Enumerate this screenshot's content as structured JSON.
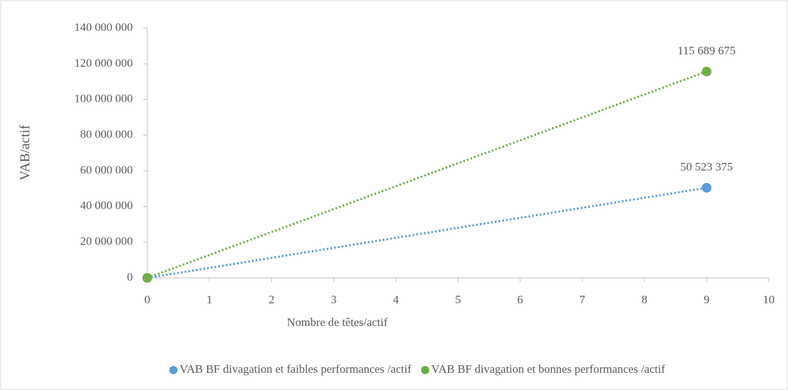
{
  "chart_data": {
    "type": "scatter",
    "xlabel": "Nombre de têtes/actif",
    "ylabel": "VAB/actif",
    "xlim": [
      0,
      10
    ],
    "xticks": [
      0,
      1,
      2,
      3,
      4,
      5,
      6,
      7,
      8,
      9,
      10
    ],
    "ylim": [
      0,
      140000000
    ],
    "yticks": [
      0,
      {
        "value": 20000000,
        "label": "20 000 000"
      },
      {
        "value": 40000000,
        "label": "40 000 000"
      },
      {
        "value": 60000000,
        "label": "60 000 000"
      },
      {
        "value": 80000000,
        "label": "80 000 000"
      },
      {
        "value": 100000000,
        "label": "100 000 000"
      },
      {
        "value": 120000000,
        "label": "120 000 000"
      },
      {
        "value": 140000000,
        "label": "140 000 000"
      }
    ],
    "legend": "bottom",
    "series": [
      {
        "name": "VAB BF divagation et faibles performances /actif",
        "color": "#5b9bd5",
        "x": [
          0,
          9
        ],
        "values": [
          0,
          50523375
        ],
        "value_labels": [
          null,
          "50 523 375"
        ]
      },
      {
        "name": "VAB BF divagation et bonnes performances /actif",
        "color": "#70ad47",
        "x": [
          0,
          9
        ],
        "values": [
          0,
          115689675
        ],
        "value_labels": [
          null,
          "115 689 675"
        ]
      }
    ]
  }
}
